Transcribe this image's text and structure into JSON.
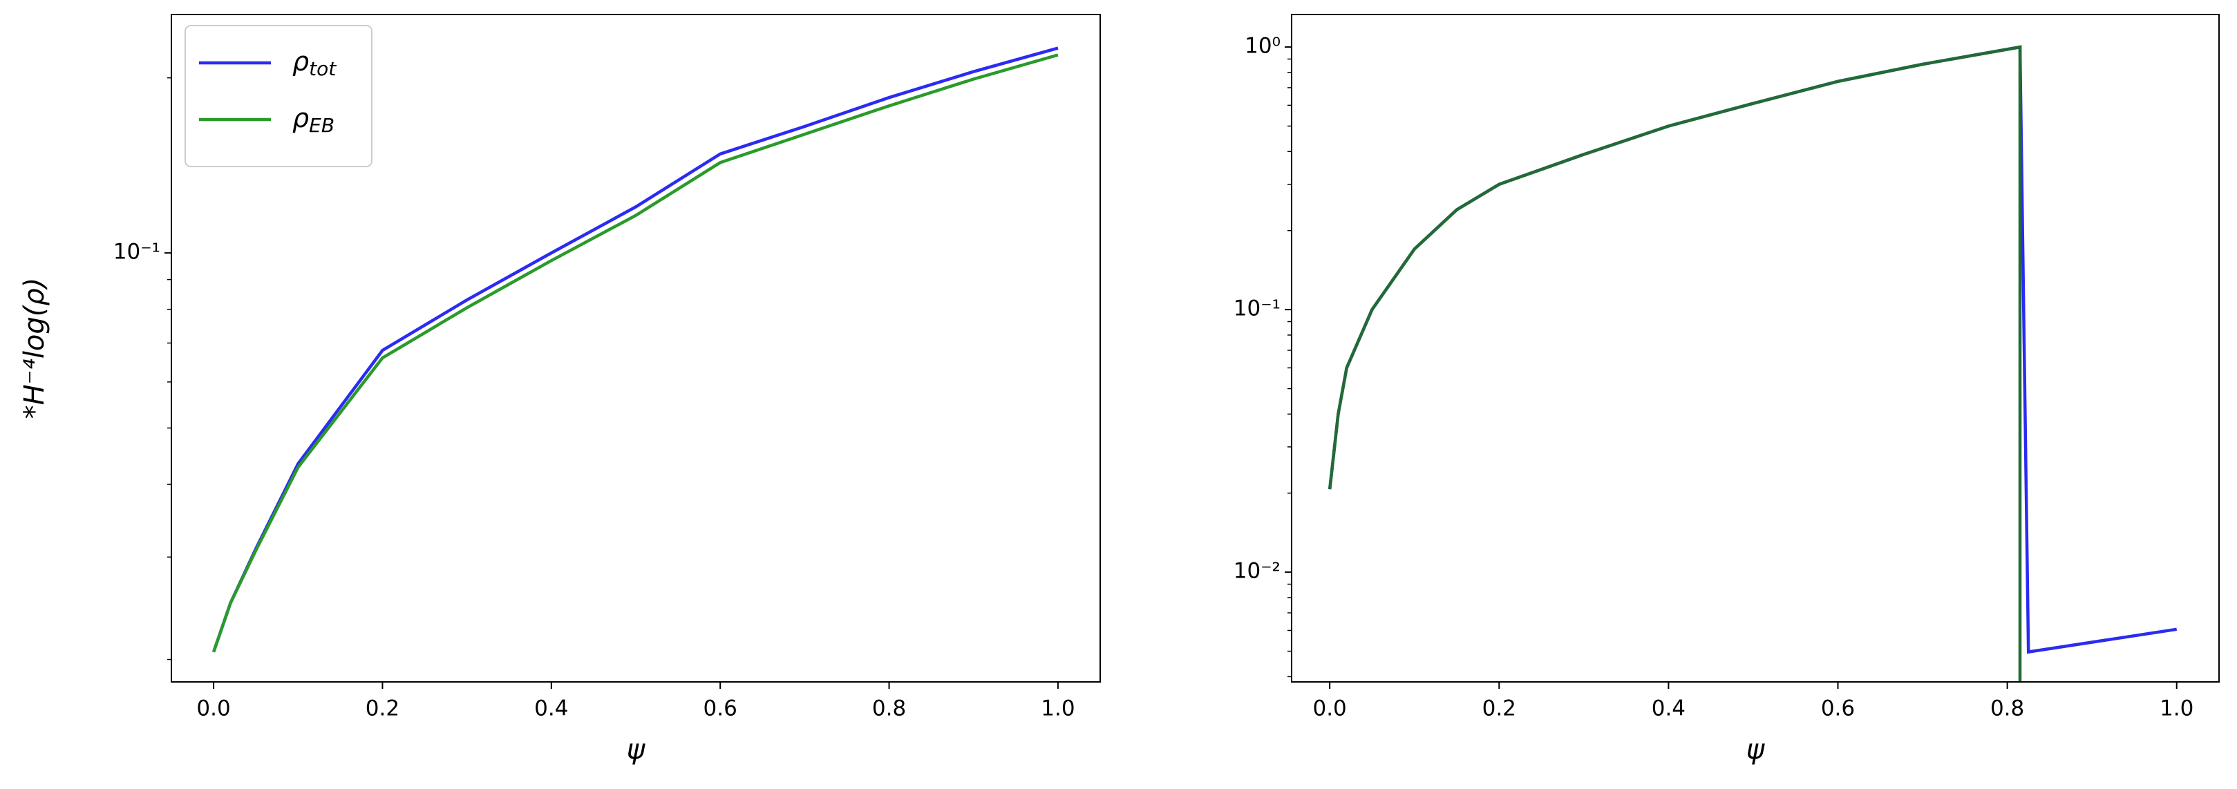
{
  "chart_data": [
    {
      "type": "line",
      "yscale": "log",
      "xlabel": "ψ",
      "ylabel": "*H⁻⁴log(ρ)",
      "legend": "upper left",
      "xlim": [
        -0.05,
        1.05
      ],
      "ylim": [
        0.0183,
        0.257
      ],
      "xticks": [
        {
          "value": 0,
          "label": "0.0"
        },
        0.2,
        0.4,
        0.6,
        0.8,
        {
          "value": 1,
          "label": "1.0"
        }
      ],
      "yticks": [
        {
          "value": 0.1,
          "label": "10⁻¹"
        }
      ],
      "minor_yticks": [
        0.02,
        0.03,
        0.04,
        0.05,
        0.06,
        0.07,
        0.08,
        0.09,
        0.2
      ],
      "series": [
        {
          "name": "ρtot",
          "color": "#2b2bf2",
          "x": [
            0,
            0.02,
            0.05,
            0.1,
            0.2,
            0.3,
            0.4,
            0.5,
            0.6,
            0.7,
            0.8,
            0.9,
            1.0
          ],
          "values": [
            0.0206,
            0.025,
            0.031,
            0.0434,
            0.068,
            0.083,
            0.1,
            0.12,
            0.148,
            0.165,
            0.185,
            0.205,
            0.225
          ]
        },
        {
          "name": "ρEB",
          "color": "#2a9a2a",
          "x": [
            0,
            0.02,
            0.05,
            0.1,
            0.2,
            0.3,
            0.4,
            0.5,
            0.6,
            0.7,
            0.8,
            0.9,
            1.0
          ],
          "values": [
            0.0206,
            0.025,
            0.0308,
            0.0428,
            0.066,
            0.0805,
            0.097,
            0.116,
            0.143,
            0.16,
            0.179,
            0.199,
            0.219
          ]
        }
      ]
    },
    {
      "type": "line",
      "yscale": "log",
      "xlabel": "ψ",
      "xlim": [
        -0.045,
        1.05
      ],
      "ylim": [
        0.00382,
        1.33
      ],
      "xticks": [
        {
          "value": 0,
          "label": "0.0"
        },
        0.2,
        0.4,
        0.6,
        0.8,
        {
          "value": 1,
          "label": "1.0"
        }
      ],
      "yticks": [
        {
          "value": 1,
          "label": "10⁰"
        },
        {
          "value": 0.1,
          "label": "10⁻¹"
        },
        {
          "value": 0.01,
          "label": "10⁻²"
        }
      ],
      "minor_yticks": [
        0.004,
        0.005,
        0.006,
        0.007,
        0.008,
        0.009,
        0.02,
        0.03,
        0.04,
        0.05,
        0.06,
        0.07,
        0.08,
        0.09,
        0.2,
        0.3,
        0.4,
        0.5,
        0.6,
        0.7,
        0.8,
        0.9
      ],
      "series": [
        {
          "color": "#2b2bf2",
          "x": [
            0,
            0.01,
            0.02,
            0.05,
            0.1,
            0.15,
            0.2,
            0.3,
            0.4,
            0.5,
            0.6,
            0.7,
            0.8,
            0.815,
            0.825,
            1.0
          ],
          "values": [
            0.0207,
            0.04,
            0.06,
            0.1,
            0.17,
            0.24,
            0.3,
            0.39,
            0.5,
            0.61,
            0.74,
            0.86,
            0.98,
            1.0,
            0.00497,
            0.00606
          ]
        },
        {
          "color": "#226b34",
          "x": [
            0,
            0.01,
            0.02,
            0.05,
            0.1,
            0.15,
            0.2,
            0.3,
            0.4,
            0.5,
            0.6,
            0.7,
            0.8,
            0.815,
            0.815
          ],
          "values": [
            0.0207,
            0.04,
            0.06,
            0.1,
            0.17,
            0.24,
            0.3,
            0.39,
            0.5,
            0.61,
            0.74,
            0.86,
            0.98,
            1.0,
            0
          ]
        }
      ]
    }
  ]
}
